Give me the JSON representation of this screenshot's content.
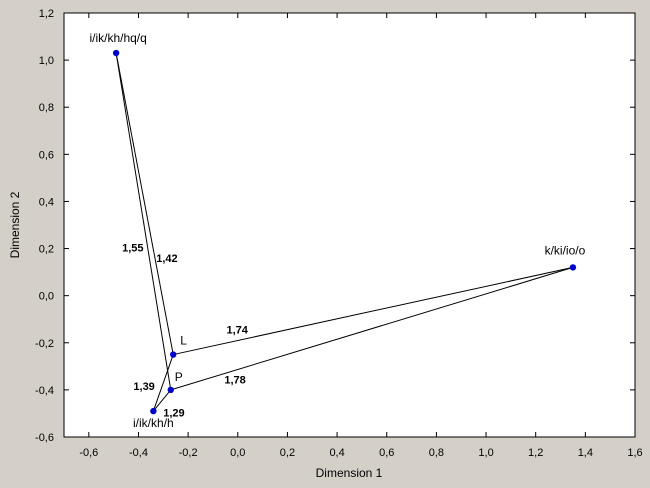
{
  "chart_data": {
    "type": "scatter",
    "xlabel": "Dimension 1",
    "ylabel": "Dimension 2",
    "xlim": [
      -0.7,
      1.6
    ],
    "ylim": [
      -0.6,
      1.2
    ],
    "xticks": [
      -0.6,
      -0.4,
      -0.2,
      0.0,
      0.2,
      0.4,
      0.6,
      0.8,
      1.0,
      1.2,
      1.4,
      1.6
    ],
    "xtick_labels": [
      "-0,6",
      "-0,4",
      "-0,2",
      "0,0",
      "0,2",
      "0,4",
      "0,6",
      "0,8",
      "1,0",
      "1,2",
      "1,4",
      "1,6"
    ],
    "yticks": [
      -0.6,
      -0.4,
      -0.2,
      0.0,
      0.2,
      0.4,
      0.6,
      0.8,
      1.0,
      1.2
    ],
    "ytick_labels": [
      "-0,6",
      "-0,4",
      "-0,2",
      "0,0",
      "0,2",
      "0,4",
      "0,6",
      "0,8",
      "1,0",
      "1,2"
    ],
    "grid": false,
    "point_color": "#0000cc",
    "points": [
      {
        "id": "A",
        "label": "i/ik/kh/hq/q",
        "x": -0.49,
        "y": 1.03
      },
      {
        "id": "B",
        "label": "k/ki/io/o",
        "x": 1.35,
        "y": 0.12
      },
      {
        "id": "C",
        "label": "i/ik/kh/h",
        "x": -0.34,
        "y": -0.49
      },
      {
        "id": "L",
        "label": "L",
        "x": -0.26,
        "y": -0.25
      },
      {
        "id": "P",
        "label": "P",
        "x": -0.27,
        "y": -0.4
      }
    ],
    "edges": [
      {
        "from": "A",
        "to": "L",
        "label": "1,42"
      },
      {
        "from": "A",
        "to": "P",
        "label": "1,55"
      },
      {
        "from": "L",
        "to": "B",
        "label": "1,74"
      },
      {
        "from": "P",
        "to": "B",
        "label": "1,78"
      },
      {
        "from": "L",
        "to": "C",
        "label": "1,39"
      },
      {
        "from": "P",
        "to": "C",
        "label": "1,29"
      }
    ]
  }
}
